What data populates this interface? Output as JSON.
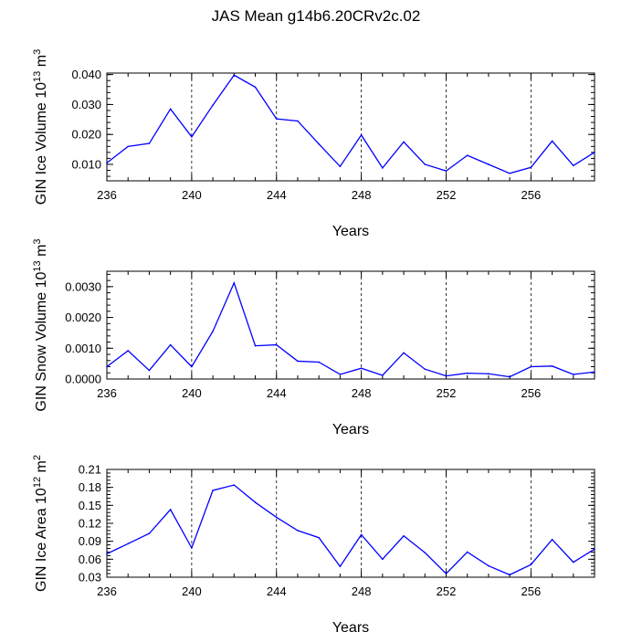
{
  "title": "JAS Mean g14b6.20CRv2c.02",
  "chart_data": [
    {
      "type": "line",
      "id": "ice-volume",
      "ylabel": "GIN Ice Volume 10",
      "ylabel_exp": "13",
      "ylabel_unit": "m",
      "ylabel_unit_exp": "3",
      "xlabel": "Years",
      "xlim": [
        236,
        259
      ],
      "ylim": [
        0.0045,
        0.0405
      ],
      "xticks": [
        236,
        240,
        244,
        248,
        252,
        256
      ],
      "xtick_labels": [
        "236",
        "240",
        "244",
        "248",
        "252",
        "256"
      ],
      "yticks": [
        0.01,
        0.02,
        0.03,
        0.04
      ],
      "ytick_labels": [
        "0.010",
        "0.020",
        "0.030",
        "0.040"
      ],
      "grid_x": [
        240,
        244,
        248,
        252,
        256
      ],
      "color": "#0000ff",
      "x": [
        236,
        237,
        238,
        239,
        240,
        241,
        242,
        243,
        244,
        245,
        246,
        247,
        248,
        249,
        250,
        251,
        252,
        253,
        254,
        255,
        256,
        257,
        258,
        259
      ],
      "y": [
        0.0105,
        0.016,
        0.017,
        0.0285,
        0.0192,
        0.0298,
        0.0398,
        0.0358,
        0.0252,
        0.0245,
        0.0168,
        0.0093,
        0.0198,
        0.0088,
        0.0175,
        0.01,
        0.0078,
        0.013,
        0.01,
        0.007,
        0.009,
        0.0178,
        0.0096,
        0.014
      ]
    },
    {
      "type": "line",
      "id": "snow-volume",
      "ylabel": "GIN Snow Volume 10",
      "ylabel_exp": "13",
      "ylabel_unit": "m",
      "ylabel_unit_exp": "3",
      "xlabel": "Years",
      "xlim": [
        236,
        259
      ],
      "ylim": [
        0.0,
        0.0035
      ],
      "xticks": [
        236,
        240,
        244,
        248,
        252,
        256
      ],
      "xtick_labels": [
        "236",
        "240",
        "244",
        "248",
        "252",
        "256"
      ],
      "yticks": [
        0.0,
        0.001,
        0.002,
        0.003
      ],
      "ytick_labels": [
        "0.0000",
        "0.0010",
        "0.0020",
        "0.0030"
      ],
      "grid_x": [
        240,
        244,
        248,
        252,
        256
      ],
      "color": "#0000ff",
      "x": [
        236,
        237,
        238,
        239,
        240,
        241,
        242,
        243,
        244,
        245,
        246,
        247,
        248,
        249,
        250,
        251,
        252,
        253,
        254,
        255,
        256,
        257,
        258,
        259
      ],
      "y": [
        0.0004,
        0.00092,
        0.00028,
        0.00111,
        0.0004,
        0.00155,
        0.00312,
        0.00108,
        0.00111,
        0.00058,
        0.00055,
        0.00015,
        0.00035,
        0.00012,
        0.00085,
        0.00032,
        0.0001,
        0.00019,
        0.00017,
        7e-05,
        0.0004,
        0.00042,
        0.00015,
        0.00023
      ]
    },
    {
      "type": "line",
      "id": "ice-area",
      "ylabel": "GIN Ice Area 10",
      "ylabel_exp": "12",
      "ylabel_unit": "m",
      "ylabel_unit_exp": "2",
      "xlabel": "Years",
      "xlim": [
        236,
        259
      ],
      "ylim": [
        0.03,
        0.21
      ],
      "xticks": [
        236,
        240,
        244,
        248,
        252,
        256
      ],
      "xtick_labels": [
        "236",
        "240",
        "244",
        "248",
        "252",
        "256"
      ],
      "yticks": [
        0.03,
        0.06,
        0.09,
        0.12,
        0.15,
        0.18,
        0.21
      ],
      "ytick_labels": [
        "0.03",
        "0.06",
        "0.09",
        "0.12",
        "0.15",
        "0.18",
        "0.21"
      ],
      "grid_x": [
        240,
        244,
        248,
        252,
        256
      ],
      "color": "#0000ff",
      "x": [
        236,
        237,
        238,
        239,
        240,
        241,
        242,
        243,
        244,
        245,
        246,
        247,
        248,
        249,
        250,
        251,
        252,
        253,
        254,
        255,
        256,
        257,
        258,
        259
      ],
      "y": [
        0.069,
        0.086,
        0.103,
        0.143,
        0.079,
        0.175,
        0.184,
        0.155,
        0.13,
        0.108,
        0.096,
        0.048,
        0.101,
        0.06,
        0.099,
        0.071,
        0.036,
        0.072,
        0.049,
        0.034,
        0.051,
        0.093,
        0.055,
        0.077
      ]
    }
  ]
}
